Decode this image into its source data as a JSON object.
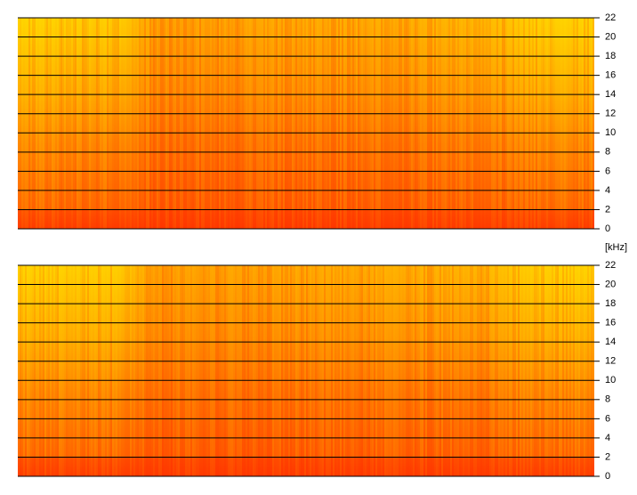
{
  "chart_data": [
    {
      "type": "spectrogram",
      "ylim": [
        0,
        22
      ],
      "yticks": [
        0,
        2,
        4,
        6,
        8,
        10,
        12,
        14,
        16,
        18,
        20,
        22
      ],
      "grid": true
    },
    {
      "type": "spectrogram",
      "ylabel": "[kHz]",
      "ylim": [
        0,
        22
      ],
      "yticks": [
        0,
        2,
        4,
        6,
        8,
        10,
        12,
        14,
        16,
        18,
        20,
        22
      ],
      "grid": true
    }
  ]
}
